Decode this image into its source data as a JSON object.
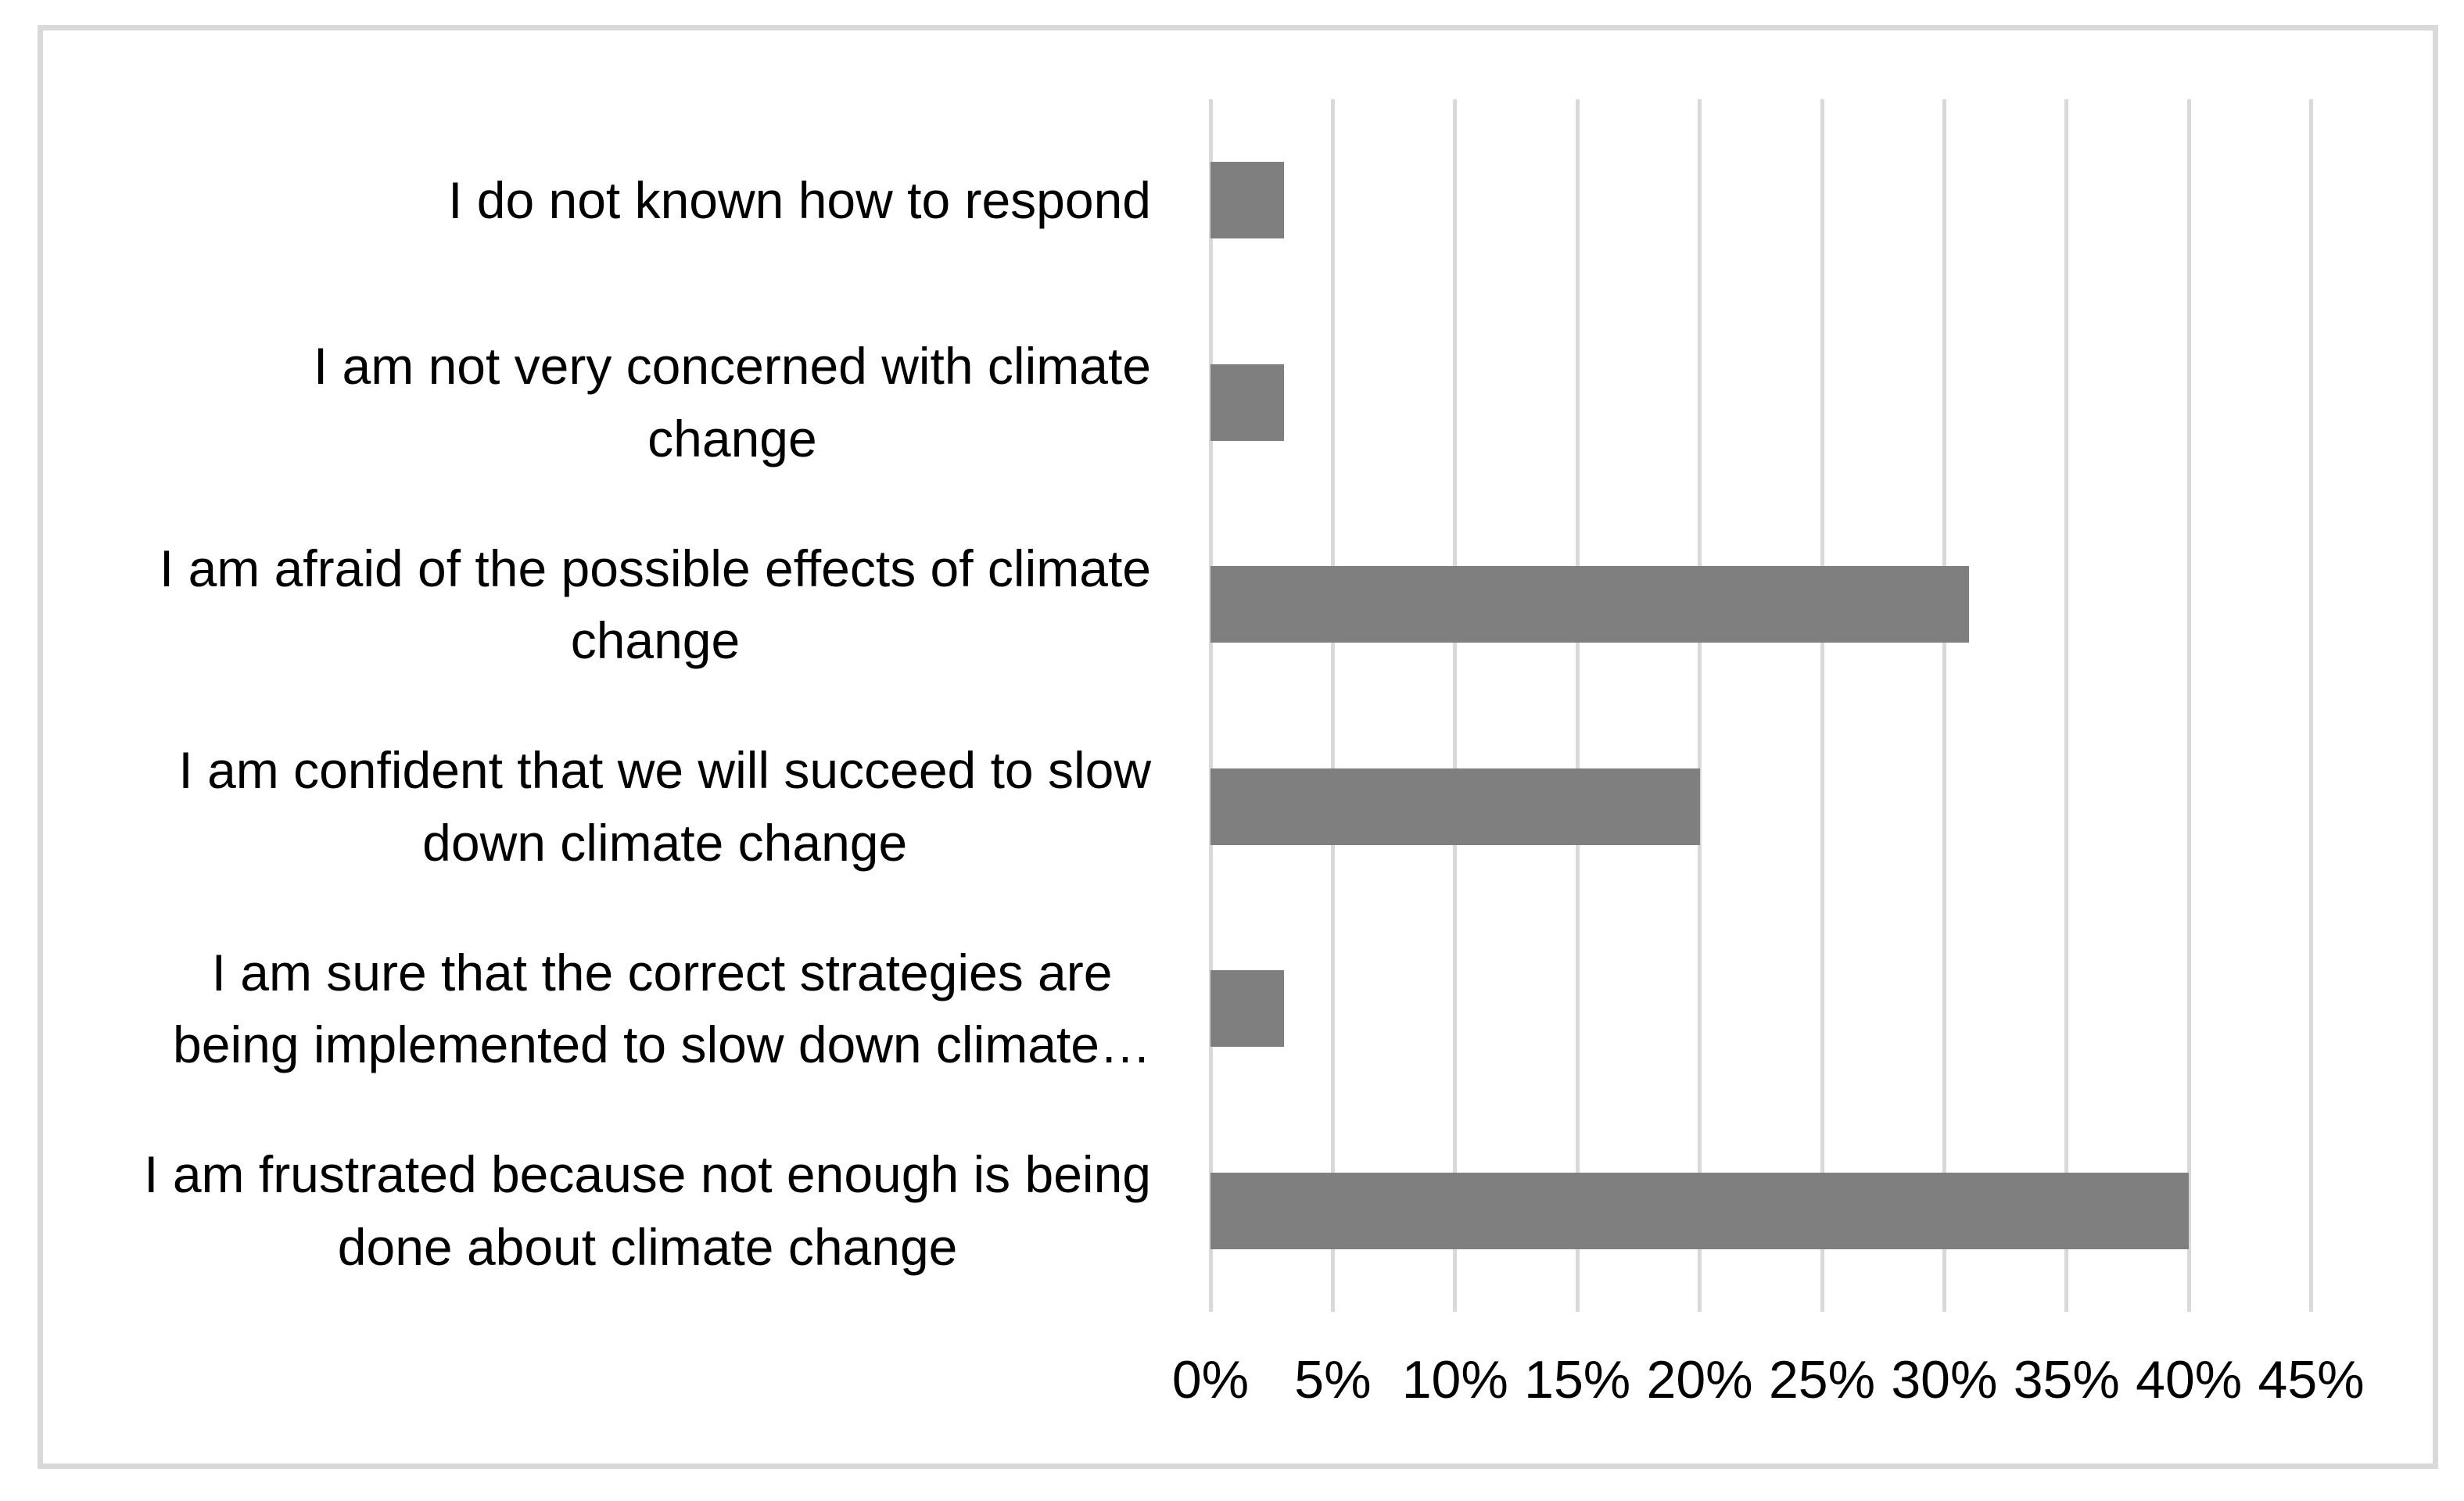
{
  "chart_data": {
    "type": "bar",
    "orientation": "horizontal",
    "categories": [
      "I do not known how to respond",
      "I am not very concerned with climate\nchange",
      "I am afraid of the possible effects of climate\nchange",
      "I am confident that we will succeed to slow\ndown climate change",
      "I am sure that the correct strategies are\nbeing implemented to slow down climate…",
      "I am frustrated because not enough is being\ndone about climate change"
    ],
    "values": [
      3,
      3,
      31,
      20,
      3,
      40
    ],
    "unit": "%",
    "xlim": [
      0,
      50
    ],
    "tick_step": 5,
    "x_tick_labels": [
      "0%",
      "5%",
      "10%",
      "15%",
      "20%",
      "25%",
      "30%",
      "35%",
      "40%",
      "45%"
    ],
    "grid": true,
    "legend": "none",
    "colors": {
      "bar": "#7f7f7f",
      "gridline": "#d9d9d9",
      "frame_border": "#d9d9d9",
      "background": "#ffffff",
      "text": "#000000"
    }
  }
}
